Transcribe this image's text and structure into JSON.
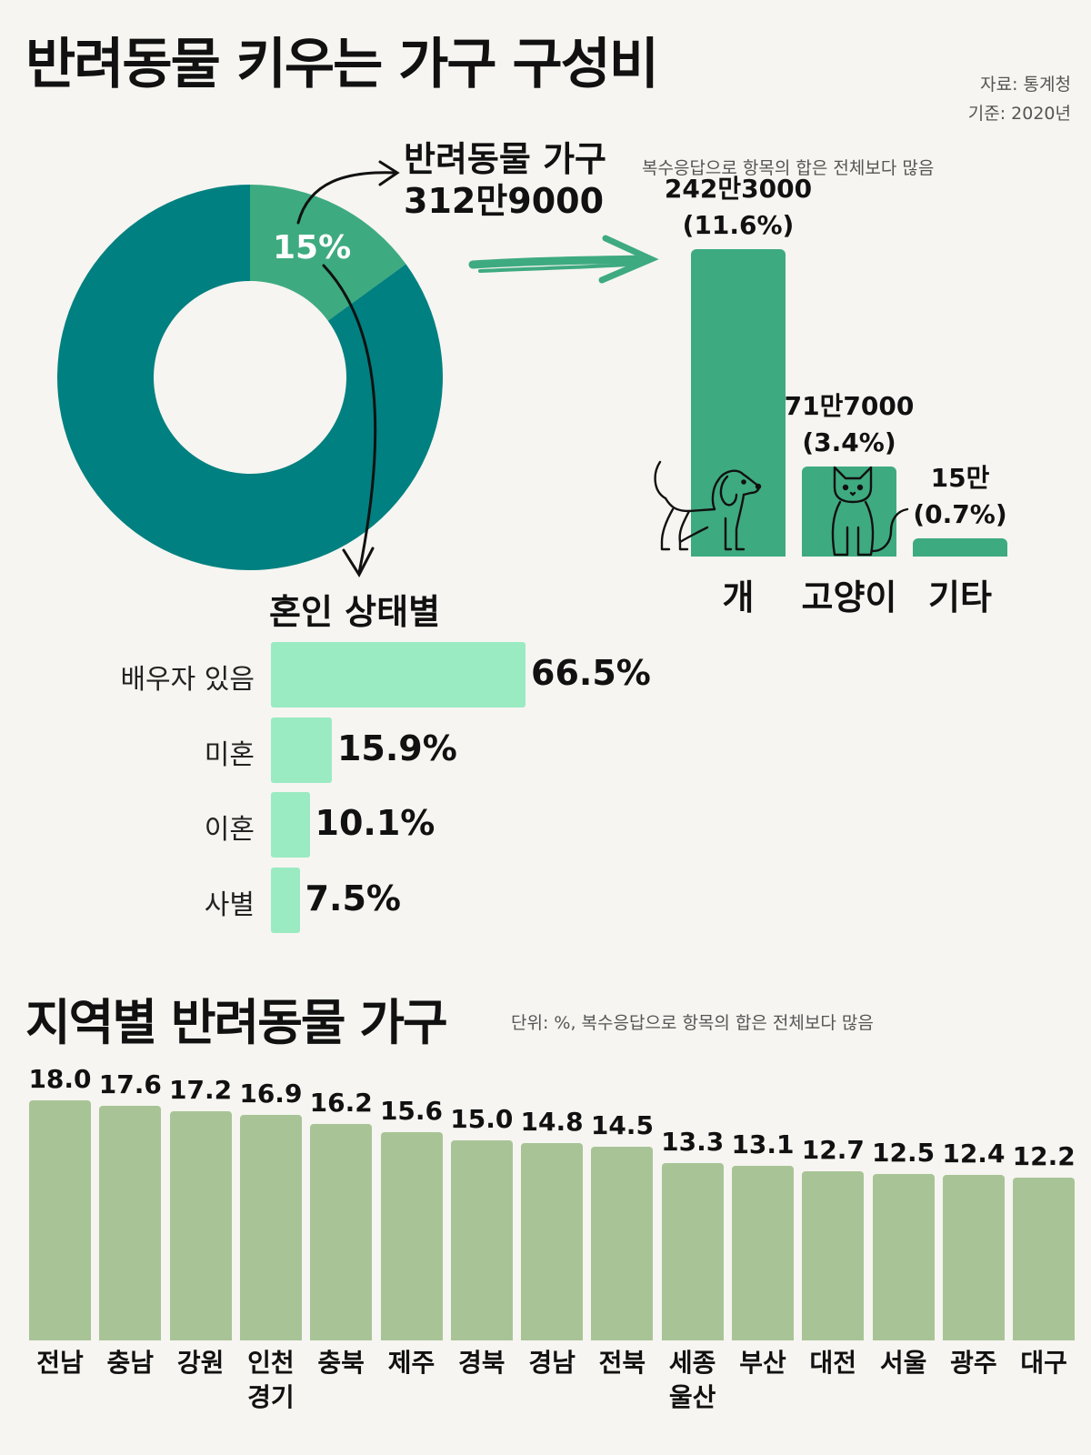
{
  "header": {
    "title": "반려동물 키우는 가구 구성비",
    "source": "자료: 통계청",
    "basis": "기준: 2020년"
  },
  "colors": {
    "background": "#f6f5f1",
    "donut_main": "#008080",
    "donut_highlight": "#3eaa80",
    "pet_bar": "#3eaa80",
    "marital_bar": "#9aebc2",
    "region_bar": "#a8c496"
  },
  "pet_households": {
    "heading": "반려동물 가구",
    "count": "312만9000",
    "note": "복수응답으로 항목의 합은 전체보다 많음"
  },
  "marital": {
    "heading": "혼인 상태별"
  },
  "regional": {
    "heading": "지역별 반려동물 가구",
    "note": "단위: %, 복수응답으로 항목의 합은 전체보다 많음"
  },
  "icons": [
    "dog-icon",
    "cat-icon",
    "curved-arrow-icon",
    "brush-arrow-icon"
  ],
  "chart_data": [
    {
      "type": "pie",
      "categories": [
        "반려동물 가구",
        ""
      ],
      "values": [
        15,
        85
      ],
      "labels": [
        "15%",
        ""
      ]
    },
    {
      "type": "bar",
      "categories": [
        "개",
        "고양이",
        "기타"
      ],
      "values": [
        11.6,
        3.4,
        0.7
      ],
      "counts": [
        "242만3000",
        "71만7000",
        "15만"
      ],
      "labels": [
        "(11.6%)",
        "(3.4%)",
        "(0.7%)"
      ],
      "ylim": [
        0,
        11.6
      ]
    },
    {
      "type": "bar",
      "orientation": "horizontal",
      "title": "혼인 상태별",
      "categories": [
        "배우자 있음",
        "미혼",
        "이혼",
        "사별"
      ],
      "values": [
        66.5,
        15.9,
        10.1,
        7.5
      ],
      "labels": [
        "66.5%",
        "15.9%",
        "10.1%",
        "7.5%"
      ]
    },
    {
      "type": "bar",
      "title": "지역별 반려동물 가구",
      "categories": [
        "전남",
        "충남",
        "강원",
        "인천\n경기",
        "충북",
        "제주",
        "경북",
        "경남",
        "전북",
        "세종\n울산",
        "부산",
        "대전",
        "서울",
        "광주",
        "대구"
      ],
      "values": [
        18.0,
        17.6,
        17.2,
        16.9,
        16.2,
        15.6,
        15.0,
        14.8,
        14.5,
        13.3,
        13.1,
        12.7,
        12.5,
        12.4,
        12.2
      ],
      "labels": [
        "18.0",
        "17.6",
        "17.2",
        "16.9",
        "16.2",
        "15.6",
        "15.0",
        "14.8",
        "14.5",
        "13.3",
        "13.1",
        "12.7",
        "12.5",
        "12.4",
        "12.2"
      ],
      "ylim": [
        0,
        18.0
      ]
    }
  ]
}
